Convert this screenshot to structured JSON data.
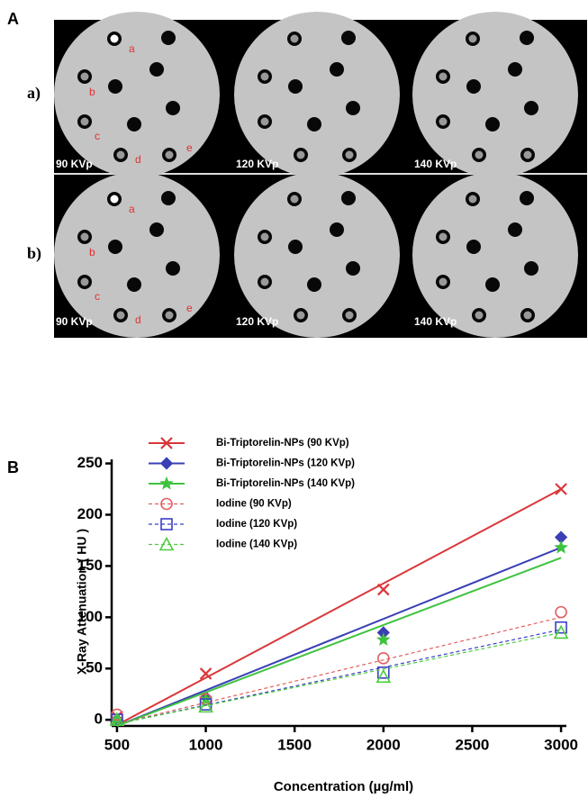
{
  "panel_a": {
    "label": "A",
    "rows": [
      {
        "label": "a)",
        "images": [
          {
            "kvp": "90 KVp",
            "markers": [
              "a",
              "b",
              "c",
              "d",
              "e"
            ]
          },
          {
            "kvp": "120 KVp"
          },
          {
            "kvp": "140 KVp"
          }
        ]
      },
      {
        "label": "b)",
        "images": [
          {
            "kvp": "90 KVp",
            "markers": [
              "a",
              "b",
              "c",
              "d",
              "e"
            ]
          },
          {
            "kvp": "120 KVp"
          },
          {
            "kvp": "140 KVp"
          }
        ]
      }
    ]
  },
  "chart_data": {
    "type": "line",
    "panel_label": "B",
    "x_label": "Concentration (µg/ml)",
    "y_label": "X-Ray Attenuation ( HU )",
    "x": [
      500,
      1000,
      2000,
      3000
    ],
    "xlim": [
      470,
      3030
    ],
    "xticks": [
      500,
      1000,
      1500,
      2000,
      2500,
      3000
    ],
    "ylim": [
      -6,
      254
    ],
    "yticks": [
      0,
      50,
      100,
      150,
      200,
      250
    ],
    "fit_x": [
      500,
      3000
    ],
    "series": [
      {
        "name": "Bi-Triptorelin-NPs (90 KVp)",
        "color": "#d9373a",
        "marker": "x",
        "dash": false,
        "values": [
          3,
          45,
          127,
          225
        ],
        "fit": [
          -5,
          225
        ]
      },
      {
        "name": "Bi-Triptorelin-NPs (120 KVp)",
        "color": "#3a3fb5",
        "marker": "diamond",
        "dash": false,
        "values": [
          0,
          22,
          85,
          178
        ],
        "fit": [
          -6,
          168
        ]
      },
      {
        "name": "Bi-Triptorelin-NPs (140 KVp)",
        "color": "#3fc23f",
        "marker": "star",
        "dash": false,
        "values": [
          0,
          20,
          78,
          168
        ],
        "fit": [
          -6,
          158
        ]
      },
      {
        "name": "Iodine (90 KVp)",
        "color": "#e06060",
        "marker": "circle",
        "dash": true,
        "values": [
          5,
          20,
          60,
          105
        ],
        "fit": [
          -4,
          100
        ]
      },
      {
        "name": "Iodine (120 KVp)",
        "color": "#3a3fc8",
        "marker": "square",
        "dash": true,
        "values": [
          0,
          15,
          46,
          90
        ],
        "fit": [
          -4,
          88
        ]
      },
      {
        "name": "Iodine (140 KVp)",
        "color": "#4ccc3c",
        "marker": "triangle",
        "dash": true,
        "values": [
          0,
          13,
          42,
          85
        ],
        "fit": [
          -4,
          85
        ]
      }
    ]
  }
}
